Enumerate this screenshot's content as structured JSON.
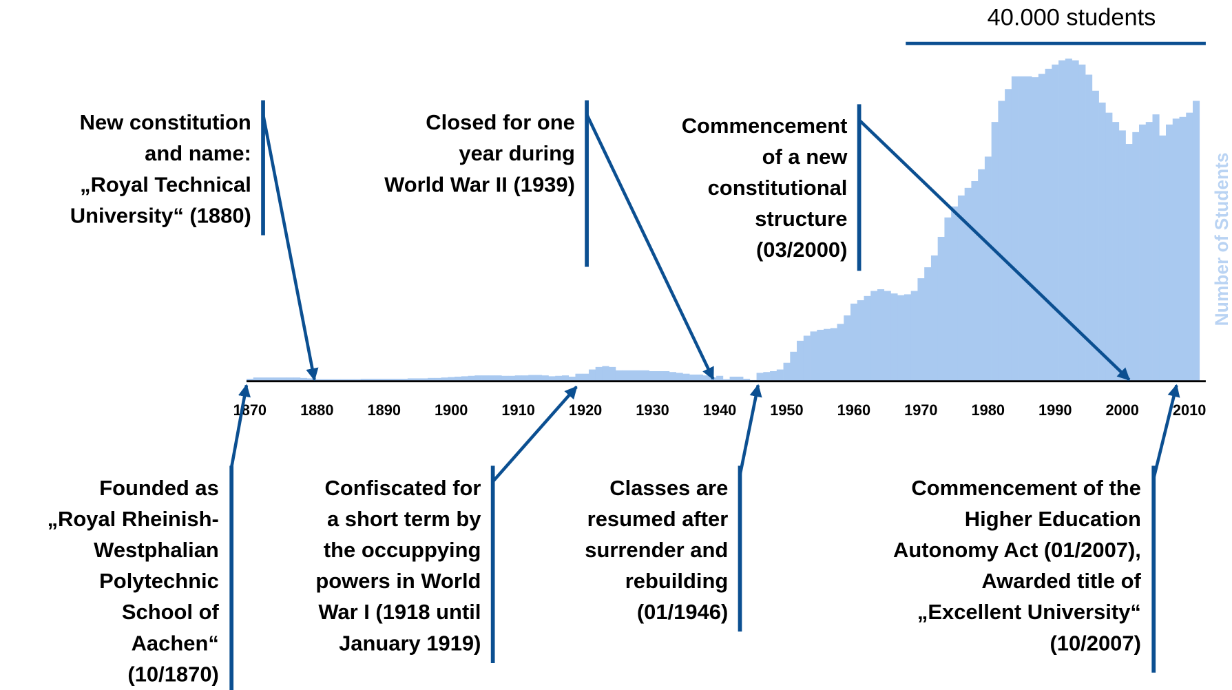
{
  "chart_data": {
    "type": "bar",
    "scale_label": "40.000 students",
    "y_label": "Number of Students",
    "color": "#a9c9f0",
    "annotation_color": "#0b4f91",
    "xlim": [
      1870,
      2012
    ],
    "ylim": [
      0,
      40000
    ],
    "xticks": [
      1870,
      1880,
      1890,
      1900,
      1910,
      1920,
      1930,
      1940,
      1950,
      1960,
      1970,
      1980,
      1990,
      2000,
      2010
    ],
    "categories": [
      1870,
      1871,
      1872,
      1873,
      1874,
      1875,
      1876,
      1877,
      1878,
      1879,
      1880,
      1881,
      1882,
      1883,
      1884,
      1885,
      1886,
      1887,
      1888,
      1889,
      1890,
      1891,
      1892,
      1893,
      1894,
      1895,
      1896,
      1897,
      1898,
      1899,
      1900,
      1901,
      1902,
      1903,
      1904,
      1905,
      1906,
      1907,
      1908,
      1909,
      1910,
      1911,
      1912,
      1913,
      1914,
      1915,
      1916,
      1917,
      1918,
      1919,
      1920,
      1921,
      1922,
      1923,
      1924,
      1925,
      1926,
      1927,
      1928,
      1929,
      1930,
      1931,
      1932,
      1933,
      1934,
      1935,
      1936,
      1937,
      1938,
      1939,
      1940,
      1941,
      1942,
      1943,
      1944,
      1945,
      1946,
      1947,
      1948,
      1949,
      1950,
      1951,
      1952,
      1953,
      1954,
      1955,
      1956,
      1957,
      1958,
      1959,
      1960,
      1961,
      1962,
      1963,
      1964,
      1965,
      1966,
      1967,
      1968,
      1969,
      1970,
      1971,
      1972,
      1973,
      1974,
      1975,
      1976,
      1977,
      1978,
      1979,
      1980,
      1981,
      1982,
      1983,
      1984,
      1985,
      1986,
      1987,
      1988,
      1989,
      1990,
      1991,
      1992,
      1993,
      1994,
      1995,
      1996,
      1997,
      1998,
      1999,
      2000,
      2001,
      2002,
      2003,
      2004,
      2005,
      2006,
      2007,
      2008,
      2009,
      2010,
      2011
    ],
    "values": [
      300,
      450,
      450,
      450,
      450,
      450,
      450,
      450,
      400,
      350,
      250,
      250,
      250,
      250,
      250,
      250,
      250,
      300,
      300,
      300,
      300,
      300,
      300,
      300,
      350,
      350,
      350,
      400,
      400,
      450,
      500,
      550,
      600,
      650,
      700,
      700,
      700,
      700,
      650,
      650,
      700,
      700,
      750,
      750,
      700,
      600,
      650,
      700,
      550,
      900,
      900,
      1400,
      1700,
      1800,
      1700,
      1300,
      1300,
      1300,
      1300,
      1300,
      1200,
      1200,
      1200,
      1100,
      1000,
      900,
      800,
      800,
      700,
      450,
      650,
      250,
      550,
      550,
      300,
      150,
      1000,
      1100,
      1200,
      1400,
      2200,
      3500,
      4800,
      5400,
      5900,
      6100,
      6200,
      6300,
      6800,
      7800,
      9200,
      9600,
      10100,
      10700,
      10900,
      10700,
      10400,
      10200,
      10300,
      10700,
      12200,
      13500,
      14900,
      17100,
      19400,
      20700,
      22000,
      22900,
      23700,
      25100,
      26600,
      30700,
      33200,
      34600,
      36100,
      36100,
      36100,
      36000,
      36400,
      37000,
      37500,
      38000,
      38200,
      38000,
      37500,
      36300,
      34400,
      33000,
      31800,
      30700,
      29700,
      28100,
      29500,
      30400,
      30700,
      31600,
      29100,
      30400,
      31100,
      31300,
      31800,
      33200
    ],
    "annotations": [
      {
        "lines": [
          "New constitution",
          "and name:",
          "„Royal Technical",
          "University“ (1880)"
        ]
      },
      {
        "lines": [
          "Closed for one",
          "year during",
          "World War II (1939)"
        ]
      },
      {
        "lines": [
          "Commencement",
          "of a new",
          "constitutional",
          "structure",
          "(03/2000)"
        ]
      },
      {
        "lines": [
          "Founded as",
          "„Royal Rheinish-",
          "Westphalian",
          "Polytechnic",
          "School of",
          "Aachen“",
          "(10/1870)"
        ]
      },
      {
        "lines": [
          "Confiscated for",
          "a short term by",
          "the occuppying",
          "powers in World",
          "War I (1918  until",
          "January 1919)"
        ]
      },
      {
        "lines": [
          "Classes are",
          "resumed after",
          "surrender and",
          "rebuilding",
          "(01/1946)"
        ]
      },
      {
        "lines": [
          "Commencement of the",
          "Higher Education",
          "Autonomy Act (01/2007),",
          "Awarded title of",
          "„Excellent University“",
          "(10/2007)"
        ]
      }
    ]
  }
}
